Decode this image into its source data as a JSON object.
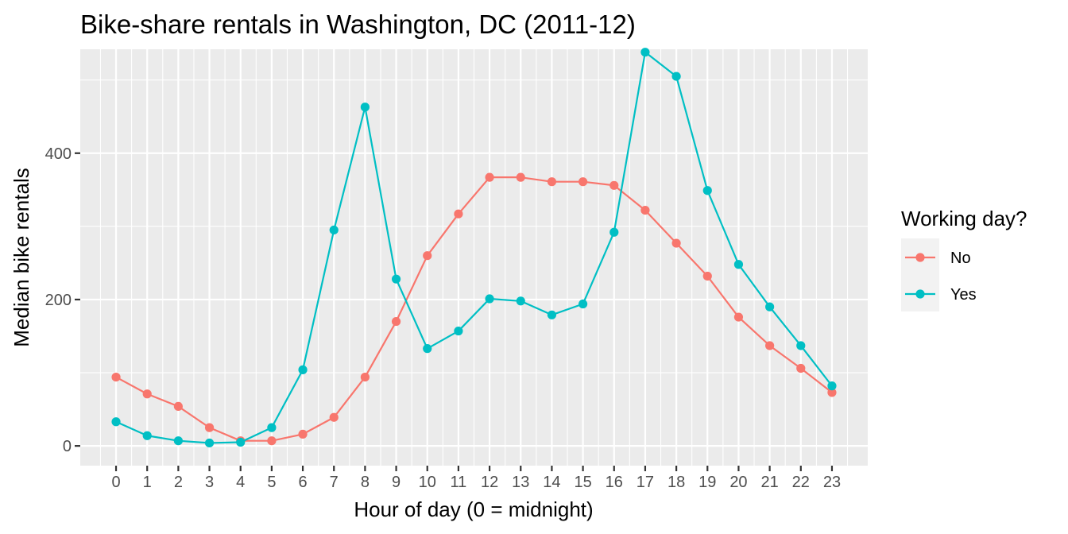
{
  "chart_data": {
    "type": "line",
    "title": "Bike-share rentals in Washington, DC (2011-12)",
    "xlabel": "Hour of day (0 = midnight)",
    "ylabel": "Median bike rentals",
    "x": [
      0,
      1,
      2,
      3,
      4,
      5,
      6,
      7,
      8,
      9,
      10,
      11,
      12,
      13,
      14,
      15,
      16,
      17,
      18,
      19,
      20,
      21,
      22,
      23
    ],
    "x_tick_labels": [
      "0",
      "1",
      "2",
      "3",
      "4",
      "5",
      "6",
      "7",
      "8",
      "9",
      "10",
      "11",
      "12",
      "13",
      "14",
      "15",
      "16",
      "17",
      "18",
      "19",
      "20",
      "21",
      "22",
      "23"
    ],
    "y_ticks": [
      0,
      200,
      400
    ],
    "y_tick_labels": [
      "0",
      "200",
      "400"
    ],
    "xlim": [
      -1.15,
      24.15
    ],
    "ylim": [
      -27,
      542
    ],
    "grid": true,
    "legend": {
      "title": "Working day?",
      "position": "right"
    },
    "series": [
      {
        "name": "No",
        "color": "#F8766D",
        "values": [
          94,
          71,
          54,
          25,
          7,
          7,
          16,
          39,
          94,
          170,
          260,
          317,
          367,
          367,
          361,
          361,
          356,
          322,
          277,
          232,
          176,
          137,
          106,
          73
        ]
      },
      {
        "name": "Yes",
        "color": "#00BFC4",
        "values": [
          33,
          14,
          7,
          4,
          5,
          25,
          104,
          295,
          463,
          228,
          133,
          157,
          201,
          198,
          179,
          194,
          292,
          538,
          505,
          349,
          248,
          190,
          137,
          82
        ]
      }
    ]
  }
}
